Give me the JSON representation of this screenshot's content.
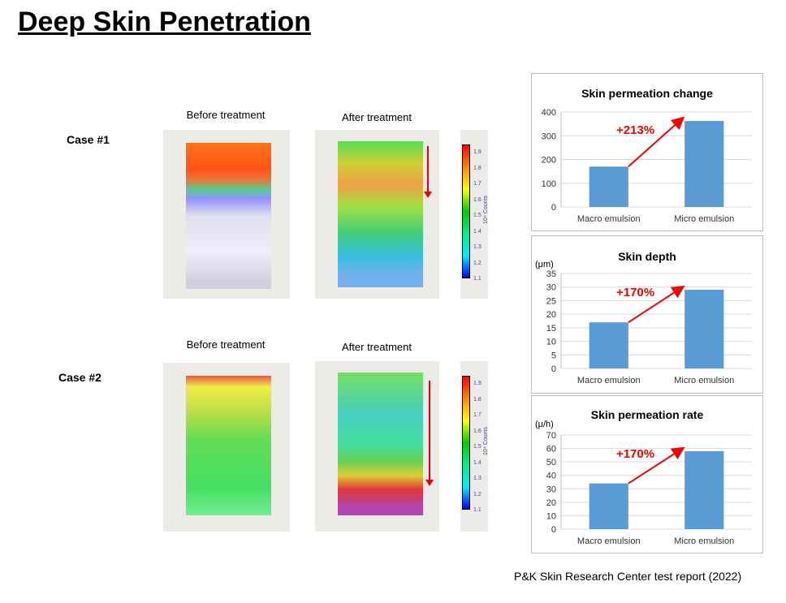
{
  "title": "Deep Skin Penetration",
  "cases": [
    {
      "label": "Case #1",
      "before": "Before treatment",
      "after": "After treatment"
    },
    {
      "label": "Case #2",
      "before": "Before treatment",
      "after": "After treatment"
    }
  ],
  "colorbar": {
    "ticks": [
      "1.9",
      "1.8",
      "1.7",
      "1.6",
      "1.5",
      "1.4",
      "1.3",
      "1.2",
      "1.1"
    ],
    "unit": "10⁴ Counts"
  },
  "footer": "P&K Skin Research Center test report (2022)",
  "chart_data": [
    {
      "type": "bar",
      "title": "Skin permeation change",
      "ylabel": "",
      "categories": [
        "Macro emulsion",
        "Micro emulsion"
      ],
      "values": [
        170,
        362
      ],
      "ylim": [
        0,
        400
      ],
      "ticks": [
        0,
        100,
        200,
        300,
        400
      ],
      "annotation": "+213%",
      "bar_color": "#5b9bd5",
      "annotation_color": "#ff0000"
    },
    {
      "type": "bar",
      "title": "Skin depth",
      "ylabel": "(μm)",
      "categories": [
        "Macro emulsion",
        "Micro emulsion"
      ],
      "values": [
        17,
        29
      ],
      "ylim": [
        0,
        35
      ],
      "ticks": [
        0,
        5,
        10,
        15,
        20,
        25,
        30,
        35
      ],
      "annotation": "+170%",
      "bar_color": "#5b9bd5",
      "annotation_color": "#ff0000"
    },
    {
      "type": "bar",
      "title": "Skin permeation rate",
      "ylabel": "(μ/h)",
      "categories": [
        "Macro emulsion",
        "Micro emulsion"
      ],
      "values": [
        34,
        58
      ],
      "ylim": [
        0,
        70
      ],
      "ticks": [
        0,
        10,
        20,
        30,
        40,
        50,
        60,
        70
      ],
      "annotation": "+170%",
      "bar_color": "#5b9bd5",
      "annotation_color": "#ff0000"
    }
  ]
}
